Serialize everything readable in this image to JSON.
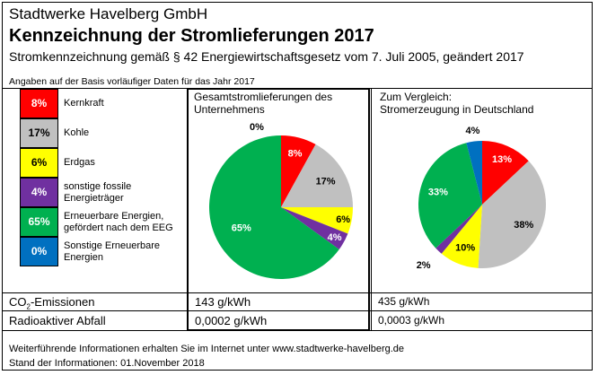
{
  "header": {
    "company": "Stadtwerke Havelberg GmbH",
    "title": "Kennzeichnung der Stromlieferungen 2017",
    "subtitle": "Stromkennzeichnung gemäß § 42 Energiewirtschaftsgesetz vom 7. Juli 2005, geändert 2017",
    "basis_note": "Angaben auf der Basis vorläufiger Daten für das Jahr 2017"
  },
  "legend": [
    {
      "value": "8%",
      "label": "Kernkraft",
      "color": "#FF0000",
      "text_color": "#FFFFFF"
    },
    {
      "value": "17%",
      "label": "Kohle",
      "color": "#C0C0C0",
      "text_color": "#000000"
    },
    {
      "value": "6%",
      "label": "Erdgas",
      "color": "#FFFF00",
      "text_color": "#000000"
    },
    {
      "value": "4%",
      "label_line1": "sonstige fossile",
      "label_line2": "Energieträger",
      "color": "#7030A0",
      "text_color": "#FFFFFF"
    },
    {
      "value": "65%",
      "label_line1": "Erneuerbare Energien,",
      "label_line2": "gefördert nach dem EEG",
      "color": "#00B050",
      "text_color": "#FFFFFF"
    },
    {
      "value": "0%",
      "label_line1": "Sonstige Erneuerbare",
      "label_line2": "Energien",
      "color": "#0070C0",
      "text_color": "#FFFFFF"
    }
  ],
  "columns": {
    "company_title_line1": "Gesamtstromlieferungen des",
    "company_title_line2": "Unternehmens",
    "germany_title_line1": "Zum Vergleich:",
    "germany_title_line2": "Stromerzeugung in Deutschland"
  },
  "chart_data": [
    {
      "type": "pie",
      "title": "Gesamtstromlieferungen des Unternehmens",
      "categories": [
        "Kernkraft",
        "Kohle",
        "Erdgas",
        "sonstige fossile Energieträger",
        "Erneuerbare Energien, gefördert nach dem EEG",
        "Sonstige Erneuerbare Energien"
      ],
      "values": [
        8,
        17,
        6,
        4,
        65,
        0
      ],
      "labels": [
        "8%",
        "17%",
        "6%",
        "4%",
        "65%",
        "0%"
      ],
      "colors": [
        "#FF0000",
        "#C0C0C0",
        "#FFFF00",
        "#7030A0",
        "#00B050",
        "#0070C0"
      ],
      "label_colors": [
        "#FFFFFF",
        "#000000",
        "#000000",
        "#FFFFFF",
        "#FFFFFF",
        "#000000"
      ],
      "start": "top",
      "direction": "clockwise"
    },
    {
      "type": "pie",
      "title": "Zum Vergleich: Stromerzeugung in Deutschland",
      "categories": [
        "Kernkraft",
        "Kohle",
        "Erdgas",
        "sonstige fossile Energieträger",
        "Erneuerbare Energien, gefördert nach dem EEG",
        "Sonstige Erneuerbare Energien"
      ],
      "values": [
        13,
        38,
        10,
        2,
        33,
        4
      ],
      "labels": [
        "13%",
        "38%",
        "10%",
        "2%",
        "33%",
        "4%"
      ],
      "colors": [
        "#FF0000",
        "#C0C0C0",
        "#FFFF00",
        "#7030A0",
        "#00B050",
        "#0070C0"
      ],
      "label_colors": [
        "#FFFFFF",
        "#000000",
        "#000000",
        "#000000",
        "#FFFFFF",
        "#000000"
      ],
      "start": "top",
      "direction": "clockwise"
    }
  ],
  "emissions": {
    "co2_label_prefix": "CO",
    "co2_label_sub": "2",
    "co2_label_suffix": "-Emissionen",
    "co2_company": "143 g/kWh",
    "co2_germany": "435 g/kWh",
    "waste_label": "Radioaktiver Abfall",
    "waste_company": "0,0002 g/kWh",
    "waste_germany": "0,0003 g/kWh"
  },
  "footer": {
    "info": "Weiterführende Informationen erhalten Sie im Internet unter www.stadtwerke-havelberg.de",
    "date": "Stand der Informationen: 01.November 2018"
  }
}
